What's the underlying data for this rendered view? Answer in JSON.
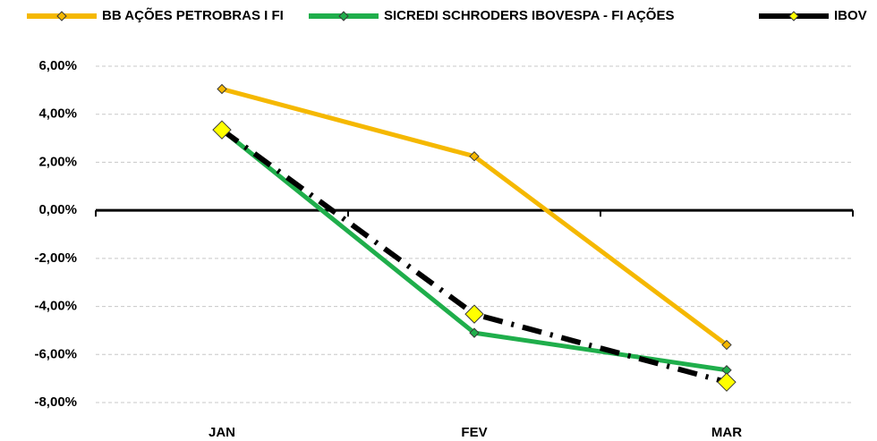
{
  "chart_data": {
    "type": "line",
    "categories": [
      "JAN",
      "FEV",
      "MAR"
    ],
    "series": [
      {
        "name": "BB AÇÕES PETROBRAS I FI",
        "color": "#f5b800",
        "values": [
          5.05,
          2.25,
          -5.6
        ]
      },
      {
        "name": "SICREDI SCHRODERS IBOVESPA - FI AÇÕES",
        "color": "#1fae4b",
        "values": [
          3.35,
          -5.1,
          -6.65
        ]
      },
      {
        "name": "IBOV",
        "color": "#000000",
        "values": [
          3.35,
          -4.32,
          -7.15
        ]
      }
    ],
    "ylim": [
      -8,
      6
    ],
    "yticks": [
      {
        "value": -8,
        "label": "-8,00%"
      },
      {
        "value": -6,
        "label": "-6,00%"
      },
      {
        "value": -4,
        "label": "-4,00%"
      },
      {
        "value": -2,
        "label": "-2,00%"
      },
      {
        "value": 0,
        "label": "0,00%"
      },
      {
        "value": 2,
        "label": "2,00%"
      },
      {
        "value": 4,
        "label": "4,00%"
      },
      {
        "value": 6,
        "label": "6,00%"
      }
    ],
    "grid": true,
    "legend": "top"
  }
}
